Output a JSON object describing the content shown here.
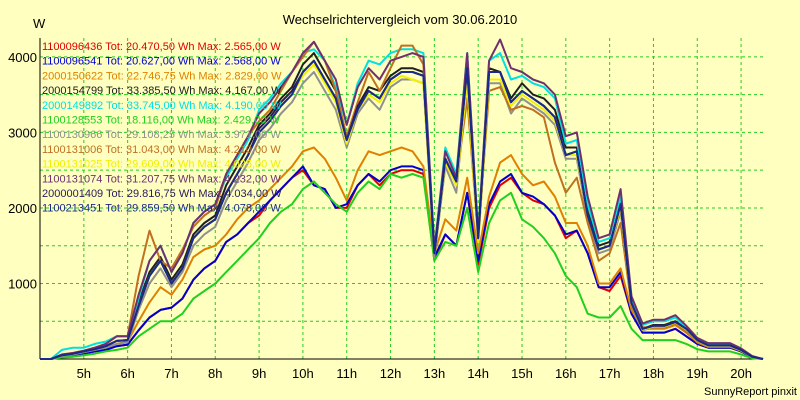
{
  "chart_data": {
    "type": "line",
    "title": "Wechselrichtervergleich vom 30.06.2010",
    "ylabel": "W",
    "xlabel": "",
    "footer": "SunnyReport pinxit",
    "xlim": [
      4.0,
      20.5
    ],
    "ylim": [
      0,
      4250
    ],
    "yticks": [
      1000,
      2000,
      3000,
      4000
    ],
    "xticks": [
      {
        "v": 5,
        "label": "5h"
      },
      {
        "v": 6,
        "label": "6h"
      },
      {
        "v": 7,
        "label": "7h"
      },
      {
        "v": 8,
        "label": "8h"
      },
      {
        "v": 9,
        "label": "9h"
      },
      {
        "v": 10,
        "label": "10h"
      },
      {
        "v": 11,
        "label": "11h"
      },
      {
        "v": 12,
        "label": "12h"
      },
      {
        "v": 13,
        "label": "13h"
      },
      {
        "v": 14,
        "label": "14h"
      },
      {
        "v": 15,
        "label": "15h"
      },
      {
        "v": 16,
        "label": "16h"
      },
      {
        "v": 17,
        "label": "17h"
      },
      {
        "v": 18,
        "label": "18h"
      },
      {
        "v": 19,
        "label": "19h"
      },
      {
        "v": 20,
        "label": "20h"
      }
    ],
    "grid": true,
    "legend_position": "top-left",
    "x": [
      4.0,
      4.25,
      4.5,
      4.75,
      5.0,
      5.25,
      5.5,
      5.75,
      6.0,
      6.25,
      6.5,
      6.75,
      7.0,
      7.25,
      7.5,
      7.75,
      8.0,
      8.25,
      8.5,
      8.75,
      9.0,
      9.25,
      9.5,
      9.75,
      10.0,
      10.25,
      10.5,
      10.75,
      11.0,
      11.25,
      11.5,
      11.75,
      12.0,
      12.25,
      12.5,
      12.75,
      13.0,
      13.25,
      13.5,
      13.75,
      14.0,
      14.25,
      14.5,
      14.75,
      15.0,
      15.25,
      15.5,
      15.75,
      16.0,
      16.25,
      16.5,
      16.75,
      17.0,
      17.25,
      17.5,
      17.75,
      18.0,
      18.25,
      18.5,
      18.75,
      19.0,
      19.25,
      19.5,
      19.75,
      20.0,
      20.25,
      20.5
    ],
    "series": [
      {
        "name": "1100096436 Tot: 20.470,50 Wh Max: 2.565,00 W",
        "color": "#e00000",
        "values": [
          0,
          0,
          30,
          50,
          70,
          100,
          120,
          170,
          190,
          380,
          550,
          650,
          680,
          800,
          1050,
          1200,
          1300,
          1550,
          1650,
          1800,
          1900,
          2100,
          2250,
          2400,
          2500,
          2300,
          2250,
          2000,
          2000,
          2300,
          2450,
          2300,
          2450,
          2500,
          2500,
          2450,
          1300,
          1650,
          1500,
          2200,
          1250,
          2000,
          2300,
          2400,
          2200,
          2100,
          2050,
          1900,
          1600,
          1700,
          1400,
          950,
          900,
          1100,
          600,
          350,
          350,
          350,
          400,
          300,
          200,
          150,
          150,
          150,
          100,
          20,
          0
        ]
      },
      {
        "name": "1100096541 Tot: 20.627,00 Wh Max: 2.568,00 W",
        "color": "#0000d0",
        "values": [
          0,
          0,
          30,
          50,
          70,
          100,
          120,
          170,
          190,
          380,
          550,
          650,
          680,
          800,
          1050,
          1200,
          1300,
          1550,
          1650,
          1800,
          1950,
          2100,
          2250,
          2400,
          2550,
          2300,
          2250,
          2000,
          2050,
          2300,
          2450,
          2350,
          2500,
          2550,
          2550,
          2500,
          1350,
          1650,
          1500,
          2200,
          1300,
          2050,
          2350,
          2450,
          2200,
          2150,
          2050,
          1900,
          1650,
          1700,
          1400,
          950,
          950,
          1150,
          600,
          350,
          350,
          350,
          400,
          300,
          200,
          150,
          150,
          150,
          100,
          20,
          0
        ]
      },
      {
        "name": "2000150622 Tot: 22.746,75 Wh Max: 2.829,00 W",
        "color": "#e08000",
        "values": [
          0,
          0,
          40,
          60,
          90,
          120,
          150,
          200,
          230,
          500,
          750,
          950,
          850,
          1050,
          1350,
          1450,
          1500,
          1650,
          1850,
          2000,
          2100,
          2250,
          2400,
          2550,
          2750,
          2800,
          2650,
          2400,
          2100,
          2500,
          2750,
          2700,
          2750,
          2800,
          2750,
          2550,
          1400,
          1850,
          1700,
          2400,
          1400,
          2150,
          2600,
          2700,
          2450,
          2300,
          2350,
          2150,
          1800,
          1800,
          1500,
          1000,
          1000,
          1200,
          650,
          400,
          400,
          400,
          450,
          350,
          220,
          160,
          160,
          160,
          110,
          30,
          0
        ]
      },
      {
        "name": "2000154799 Tot: 33.385,50 Wh Max: 4.167,00 W",
        "color": "#202020",
        "values": [
          0,
          0,
          50,
          70,
          100,
          130,
          170,
          240,
          250,
          750,
          1150,
          1350,
          1050,
          1250,
          1650,
          1800,
          1900,
          2300,
          2550,
          2800,
          3100,
          3250,
          3450,
          3600,
          3900,
          4050,
          3800,
          3550,
          2900,
          3350,
          3600,
          3550,
          3750,
          3850,
          3850,
          3800,
          1400,
          2650,
          2300,
          3900,
          1600,
          3850,
          3800,
          3450,
          3650,
          3500,
          3450,
          3300,
          2800,
          2800,
          1950,
          1500,
          1550,
          2100,
          750,
          400,
          450,
          450,
          500,
          400,
          250,
          180,
          180,
          180,
          120,
          30,
          0
        ]
      },
      {
        "name": "2000149892 Tot: 33.745,00 Wh Max: 4.190,00 W",
        "color": "#00e0e0",
        "values": [
          0,
          0,
          120,
          150,
          150,
          200,
          230,
          300,
          300,
          800,
          1300,
          1500,
          1150,
          1400,
          1800,
          1950,
          2050,
          2400,
          2650,
          2900,
          3300,
          3450,
          3650,
          3800,
          4050,
          4100,
          3950,
          3600,
          3100,
          3650,
          3950,
          3900,
          4050,
          4100,
          4100,
          4050,
          1450,
          2800,
          2450,
          4050,
          1650,
          3950,
          4050,
          3700,
          3750,
          3650,
          3600,
          3450,
          2850,
          2900,
          2050,
          1550,
          1600,
          2150,
          800,
          450,
          500,
          500,
          550,
          420,
          270,
          200,
          200,
          200,
          130,
          35,
          0
        ]
      },
      {
        "name": "1100128553 Tot: 18.116,00 Wh Max: 2.429,00 W",
        "color": "#20d020",
        "values": [
          0,
          0,
          20,
          30,
          50,
          70,
          100,
          120,
          150,
          300,
          400,
          500,
          500,
          600,
          800,
          900,
          1000,
          1150,
          1300,
          1450,
          1600,
          1800,
          1950,
          2050,
          2250,
          2350,
          2200,
          2050,
          1950,
          2200,
          2350,
          2250,
          2450,
          2400,
          2450,
          2400,
          1300,
          1550,
          1500,
          2000,
          1150,
          1800,
          2100,
          2200,
          1850,
          1750,
          1600,
          1400,
          1100,
          950,
          600,
          550,
          550,
          700,
          400,
          250,
          250,
          250,
          250,
          200,
          130,
          100,
          100,
          100,
          60,
          10,
          0
        ]
      },
      {
        "name": "1100130966 Tot: 29.108,25 Wh Max: 3.971,00 W",
        "color": "#909090",
        "values": [
          0,
          0,
          40,
          60,
          90,
          120,
          150,
          200,
          220,
          650,
          1000,
          1200,
          950,
          1150,
          1500,
          1650,
          1750,
          2100,
          2350,
          2600,
          2900,
          3050,
          3250,
          3400,
          3650,
          3800,
          3550,
          3300,
          2800,
          3250,
          3450,
          3300,
          3600,
          3700,
          3700,
          3650,
          1350,
          2550,
          2200,
          3700,
          1550,
          3650,
          3650,
          3250,
          3450,
          3350,
          3250,
          3100,
          2650,
          2650,
          1850,
          1400,
          1450,
          1950,
          700,
          380,
          420,
          420,
          470,
          380,
          240,
          170,
          170,
          170,
          110,
          28,
          0
        ]
      },
      {
        "name": "1100131006 Tot: 31.043,00 Wh Max: 4.210,00 W",
        "color": "#c07020",
        "values": [
          0,
          0,
          60,
          80,
          110,
          150,
          200,
          300,
          300,
          1100,
          1700,
          1300,
          1200,
          1450,
          1750,
          1900,
          2000,
          2450,
          2700,
          2950,
          3150,
          3300,
          3550,
          3800,
          4000,
          4200,
          3950,
          3550,
          2950,
          3400,
          3800,
          3550,
          3850,
          4150,
          4150,
          3900,
          1450,
          2650,
          2350,
          3450,
          1600,
          3550,
          3600,
          3300,
          3350,
          3300,
          3200,
          2600,
          2200,
          2400,
          1800,
          1300,
          1400,
          1800,
          700,
          420,
          420,
          420,
          470,
          350,
          250,
          180,
          180,
          180,
          120,
          30,
          0
        ]
      },
      {
        "name": "1100131025 Tot: 29.609,00 Wh Max: 4.025,00 W",
        "color": "#f0f000",
        "values": [
          0,
          0,
          50,
          70,
          100,
          130,
          170,
          240,
          250,
          700,
          1100,
          1300,
          1000,
          1200,
          1600,
          1750,
          1850,
          2200,
          2450,
          2700,
          3000,
          3150,
          3350,
          3500,
          3750,
          3900,
          3650,
          3400,
          2850,
          3300,
          3500,
          3400,
          3650,
          3750,
          3700,
          3650,
          1400,
          2600,
          2300,
          3650,
          1550,
          3700,
          3700,
          3350,
          3500,
          3400,
          3300,
          3150,
          2700,
          2700,
          1900,
          1450,
          1500,
          2000,
          730,
          390,
          430,
          430,
          480,
          390,
          245,
          175,
          175,
          175,
          115,
          29,
          0
        ]
      },
      {
        "name": "1100131074 Tot: 31.207,75 Wh Max: 4.232,00 W",
        "color": "#703070",
        "values": [
          0,
          0,
          60,
          80,
          110,
          150,
          200,
          300,
          300,
          850,
          1300,
          1500,
          1150,
          1400,
          1800,
          1950,
          2050,
          2450,
          2700,
          2950,
          3250,
          3400,
          3600,
          3800,
          4050,
          4200,
          3950,
          3700,
          3100,
          3600,
          3850,
          3700,
          3950,
          4000,
          4050,
          4000,
          1450,
          2750,
          2400,
          4050,
          1650,
          3950,
          4230,
          3850,
          3800,
          3700,
          3650,
          3500,
          2950,
          3000,
          2150,
          1600,
          1650,
          2250,
          830,
          470,
          520,
          520,
          580,
          440,
          280,
          210,
          210,
          210,
          140,
          40,
          0
        ]
      },
      {
        "name": "2000001409 Tot: 29.816,75 Wh Max: 4.034,00 W",
        "color": "#2a1a5a",
        "values": [
          0,
          0,
          50,
          70,
          100,
          130,
          170,
          240,
          250,
          700,
          1100,
          1300,
          1000,
          1200,
          1600,
          1750,
          1850,
          2200,
          2450,
          2700,
          3050,
          3200,
          3400,
          3550,
          3800,
          3950,
          3700,
          3450,
          2900,
          3350,
          3550,
          3450,
          3700,
          3800,
          3800,
          3750,
          1400,
          2650,
          2350,
          3850,
          1600,
          3800,
          3800,
          3400,
          3550,
          3450,
          3350,
          3200,
          2700,
          2750,
          1900,
          1450,
          1500,
          2050,
          740,
          400,
          440,
          440,
          490,
          400,
          250,
          180,
          180,
          180,
          120,
          30,
          0
        ]
      },
      {
        "name": "1100213451 Tot: 29.859,50 Wh Max: 4.078,00 W",
        "color": "#1a2a8a",
        "values": [
          0,
          0,
          50,
          70,
          100,
          130,
          170,
          240,
          250,
          700,
          1100,
          1300,
          1000,
          1200,
          1600,
          1750,
          1850,
          2200,
          2450,
          2700,
          3000,
          3150,
          3350,
          3500,
          3800,
          3950,
          3700,
          3450,
          2900,
          3300,
          3550,
          3450,
          3700,
          3800,
          3800,
          3750,
          1400,
          2650,
          2350,
          3850,
          1600,
          3800,
          3800,
          3400,
          3550,
          3450,
          3350,
          3200,
          2700,
          2750,
          1900,
          1450,
          1500,
          2050,
          740,
          400,
          440,
          440,
          490,
          400,
          250,
          180,
          180,
          180,
          120,
          30,
          0
        ]
      }
    ]
  }
}
